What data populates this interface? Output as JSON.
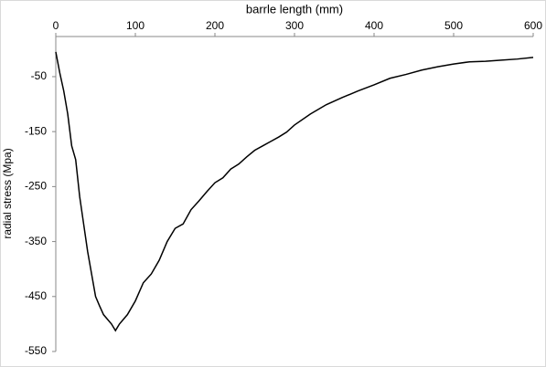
{
  "chart_data": {
    "type": "line",
    "x_label": "barrle length (mm)",
    "y_label": "radial stress (Mpa)",
    "x": [
      0,
      5,
      10,
      15,
      20,
      25,
      30,
      35,
      40,
      45,
      50,
      55,
      60,
      70,
      75,
      80,
      90,
      100,
      110,
      120,
      130,
      140,
      150,
      160,
      170,
      180,
      190,
      200,
      210,
      220,
      230,
      240,
      250,
      260,
      270,
      280,
      290,
      300,
      320,
      340,
      360,
      380,
      400,
      420,
      440,
      460,
      480,
      500,
      520,
      540,
      560,
      580,
      600
    ],
    "series": [
      {
        "name": "radial stress",
        "color": "#000000",
        "values": [
          -5,
          -43,
          -76,
          -118,
          -176,
          -201,
          -268,
          -318,
          -368,
          -409,
          -450,
          -467,
          -483,
          -500,
          -512,
          -500,
          -483,
          -458,
          -425,
          -409,
          -384,
          -350,
          -326,
          -318,
          -292,
          -276,
          -259,
          -243,
          -234,
          -218,
          -209,
          -196,
          -184,
          -176,
          -168,
          -160,
          -151,
          -138,
          -118,
          -101,
          -88,
          -76,
          -65,
          -53,
          -46,
          -38,
          -32,
          -27,
          -23,
          -22,
          -20,
          -18,
          -15
        ]
      }
    ],
    "xlim": [
      0,
      600
    ],
    "xticks": [
      0,
      100,
      200,
      300,
      400,
      500,
      600
    ],
    "ylim": [
      -550,
      23
    ],
    "yticks": [
      -550,
      -450,
      -350,
      -250,
      -150,
      -50
    ],
    "grid": false
  }
}
